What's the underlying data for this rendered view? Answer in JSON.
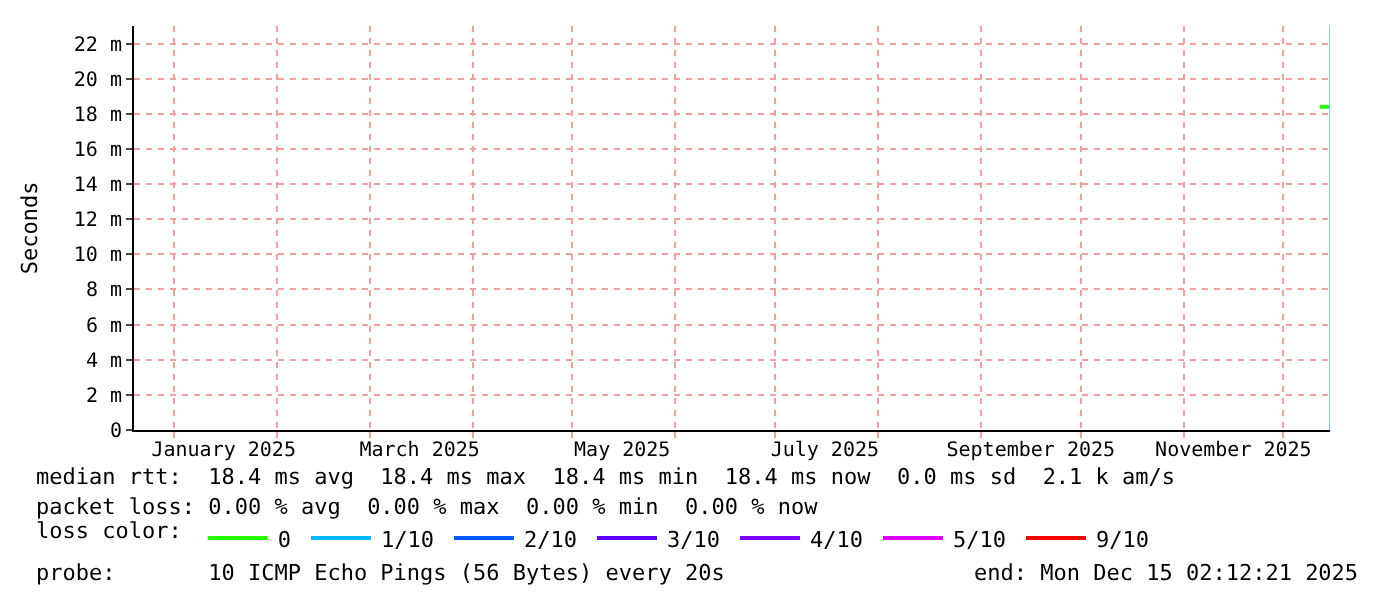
{
  "chart_data": {
    "type": "line",
    "ylabel": "Seconds",
    "legend_title": "loss color:",
    "legend": "bottom",
    "grid": true,
    "x": [
      "2025-12-12",
      "2025-12-15T02:12"
    ],
    "series": [
      {
        "name": "0",
        "color": "#26ff00",
        "values": [
          18.4,
          18.4
        ]
      },
      {
        "name": "1/10",
        "color": "#00b8ff",
        "values": [
          null,
          null
        ]
      },
      {
        "name": "2/10",
        "color": "#0059ff",
        "values": [
          null,
          null
        ]
      },
      {
        "name": "3/10",
        "color": "#5e00ff",
        "values": [
          null,
          null
        ]
      },
      {
        "name": "4/10",
        "color": "#7e00ff",
        "values": [
          null,
          null
        ]
      },
      {
        "name": "5/10",
        "color": "#dd00ff",
        "values": [
          null,
          null
        ]
      },
      {
        "name": "9/10",
        "color": "#ff0000",
        "values": [
          null,
          null
        ]
      }
    ],
    "xlim": [
      "2024-12-20",
      "2025-12-15T02:12"
    ],
    "xticks": [
      {
        "value": "2025-01-16",
        "label": "January 2025"
      },
      {
        "value": "2025-03-16",
        "label": "March 2025"
      },
      {
        "value": "2025-05-16",
        "label": "May 2025"
      },
      {
        "value": "2025-07-16",
        "label": "July 2025"
      },
      {
        "value": "2025-09-16",
        "label": "September 2025"
      },
      {
        "value": "2025-11-16",
        "label": "November 2025"
      },
      {
        "value": "2025-01-01",
        "label": null
      },
      {
        "value": "2025-02-01",
        "label": null
      },
      {
        "value": "2025-03-01",
        "label": null
      },
      {
        "value": "2025-04-01",
        "label": null
      },
      {
        "value": "2025-05-01",
        "label": null
      },
      {
        "value": "2025-06-01",
        "label": null
      },
      {
        "value": "2025-07-01",
        "label": null
      },
      {
        "value": "2025-08-01",
        "label": null
      },
      {
        "value": "2025-09-01",
        "label": null
      },
      {
        "value": "2025-10-01",
        "label": null
      },
      {
        "value": "2025-11-01",
        "label": null
      },
      {
        "value": "2025-12-01",
        "label": null
      }
    ],
    "ylim": [
      0,
      23
    ],
    "yticks": [
      0,
      {
        "value": 2,
        "label": "2 m"
      },
      {
        "value": 4,
        "label": "4 m"
      },
      {
        "value": 6,
        "label": "6 m"
      },
      {
        "value": 8,
        "label": "8 m"
      },
      {
        "value": 10,
        "label": "10 m"
      },
      {
        "value": 12,
        "label": "12 m"
      },
      {
        "value": 14,
        "label": "14 m"
      },
      {
        "value": 16,
        "label": "16 m"
      },
      {
        "value": 18,
        "label": "18 m"
      },
      {
        "value": 20,
        "label": "20 m"
      },
      {
        "value": 22,
        "label": "22 m"
      }
    ],
    "ref_lines": [
      {
        "axis": "x",
        "value": "2025-12-15T02:12",
        "label": null,
        "color": "#7fd4ff"
      }
    ],
    "annotations": [
      "median rtt:  18.4 ms avg  18.4 ms max  18.4 ms min  18.4 ms now  0.0 ms sd  2.1 k am/s",
      "packet loss: 0.00 % avg  0.00 % max  0.00 % min  0.00 % now",
      "probe:       10 ICMP Echo Pings (56 Bytes) every 20s",
      "end: Mon Dec 15 02:12:21 2025"
    ]
  }
}
